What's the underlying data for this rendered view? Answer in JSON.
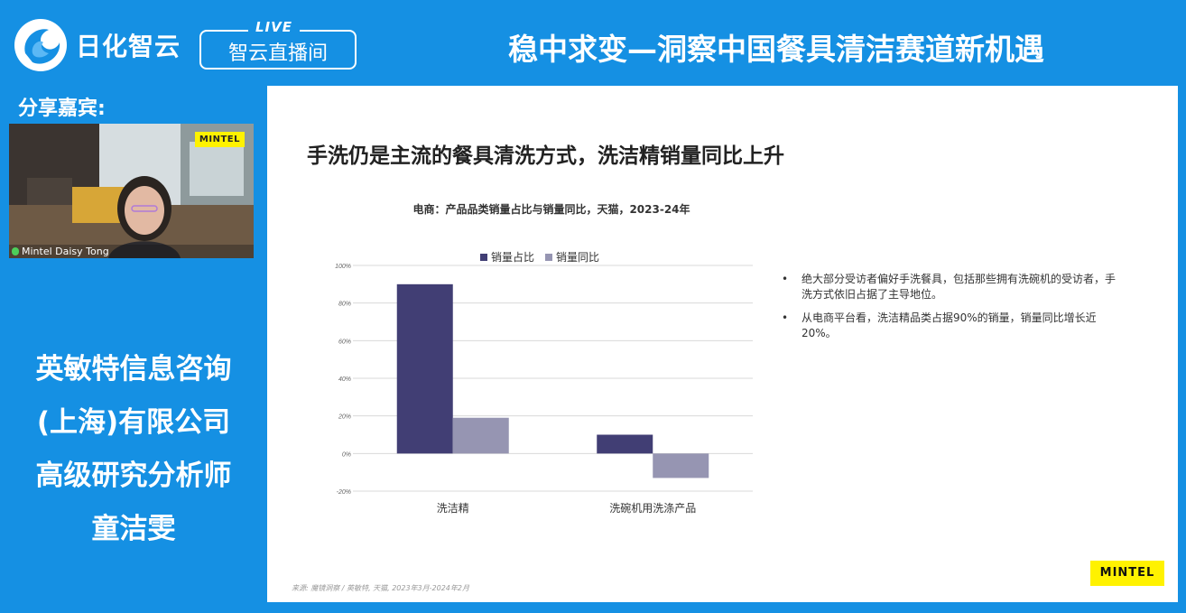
{
  "header": {
    "logo_text": "日化智云",
    "live_tag": "LIVE",
    "live_label": "智云直播间",
    "title": "稳中求变—洞察中国餐具清洁赛道新机遇"
  },
  "guest": {
    "label": "分享嘉宾:",
    "video_name": "Mintel Daisy Tong",
    "video_badge": "MINTEL"
  },
  "speaker": {
    "line1": "英敏特信息咨询",
    "line2": "(上海)有限公司",
    "line3": "高级研究分析师",
    "line4": "童洁雯"
  },
  "slide": {
    "title": "手洗仍是主流的餐具清洗方式，洗洁精销量同比上升",
    "bullets": [
      "绝大部分受访者偏好手洗餐具，包括那些拥有洗碗机的受访者，手洗方式依旧占据了主导地位。",
      "从电商平台看，洗洁精品类占据90%的销量，销量同比增长近20%。"
    ],
    "bullet_symbol": "•",
    "source": "来源: 魔镜洞察 / 英敏特, 天猫, 2023年3月-2024年2月",
    "brand": "MINTEL"
  },
  "chart_data": {
    "type": "bar",
    "title": "电商：产品品类销量占比与销量同比，天猫，2023-24年",
    "categories": [
      "洗洁精",
      "洗碗机用洗涤产品"
    ],
    "series": [
      {
        "name": "销量占比",
        "values": [
          90,
          10
        ],
        "color": "#413e74"
      },
      {
        "name": "销量同比",
        "values": [
          19,
          -13
        ],
        "color": "#9695b2"
      }
    ],
    "ylim": [
      -20,
      100
    ],
    "yticks": [
      "100%",
      "80%",
      "60%",
      "40%",
      "20%",
      "0%",
      "-20%"
    ],
    "legend": "top",
    "grid": true
  },
  "colors": {
    "background": "#1590e3",
    "slide": "#ffffff",
    "accent_yellow": "#fff200"
  }
}
